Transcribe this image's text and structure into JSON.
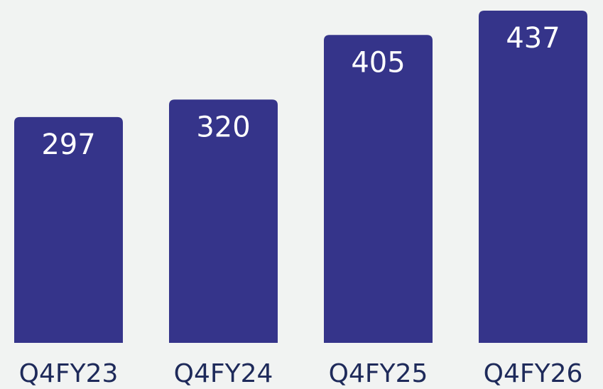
{
  "chart_data": {
    "type": "bar",
    "categories": [
      "Q4FY23",
      "Q4FY24",
      "Q4FY25",
      "Q4FY26"
    ],
    "values": [
      297,
      320,
      405,
      437
    ],
    "color": "#35348a"
  }
}
